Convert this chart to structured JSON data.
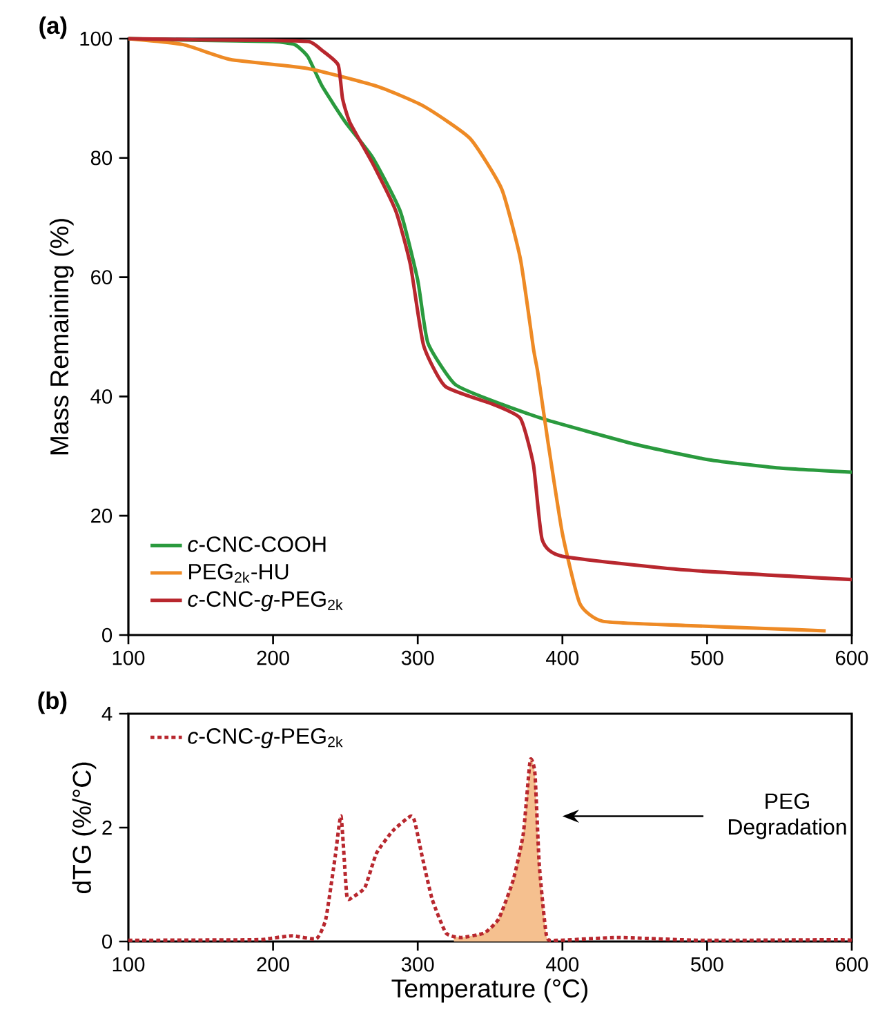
{
  "chart_data": [
    {
      "type": "line",
      "title": "(a)",
      "ylabel": "Mass Remaining (%)",
      "xlim": [
        100,
        600
      ],
      "ylim": [
        0,
        100
      ],
      "xticks": [
        100,
        200,
        300,
        400,
        500,
        600
      ],
      "yticks": [
        0,
        20,
        40,
        60,
        80,
        100
      ],
      "legend": "bottom left",
      "line_style": "solid",
      "series": [
        {
          "name": "*c*-CNC-COOH",
          "color": "#2a9a3e",
          "x": [
            100,
            150,
            200,
            215,
            224,
            234,
            250,
            269,
            288,
            300,
            307,
            326,
            358,
            390,
            450,
            501,
            550,
            600
          ],
          "values": [
            100,
            99.7,
            99.5,
            99,
            97,
            92,
            86,
            80,
            71,
            59.5,
            49,
            42,
            38.7,
            36,
            32,
            29.4,
            28,
            27.3
          ]
        },
        {
          "name": "PEG$_{2k}$-HU",
          "color": "#ee8a25",
          "x": [
            100,
            138,
            170.6,
            224,
            272,
            304,
            336,
            358,
            371,
            380,
            383,
            390,
            400,
            412,
            428,
            485,
            540,
            582
          ],
          "values": [
            100,
            99,
            96.5,
            95,
            92,
            88.7,
            83.3,
            74.8,
            63,
            48,
            44,
            32.4,
            17,
            5.3,
            2.3,
            1.6,
            1.1,
            0.7
          ]
        },
        {
          "name": "*c*-CNC-*g*-PEG$_{2k}$",
          "color": "#b8272e",
          "x": [
            100,
            150,
            200,
            225,
            234,
            245,
            248,
            253,
            269,
            285,
            295,
            304,
            319,
            352,
            371,
            380,
            386,
            400,
            485.5,
            600
          ],
          "values": [
            100,
            99.8,
            99.7,
            99.5,
            98,
            95.6,
            90,
            86,
            79,
            71,
            62,
            48.6,
            41.7,
            38.7,
            36.3,
            28.5,
            16,
            13.2,
            10.9,
            9.3
          ]
        }
      ]
    },
    {
      "type": "line",
      "title": "(b)",
      "xlabel": "Temperature (°C)",
      "ylabel": "dTG (%/°C)",
      "xlim": [
        100,
        600
      ],
      "ylim": [
        0,
        4
      ],
      "xticks": [
        100,
        200,
        300,
        400,
        500,
        600
      ],
      "yticks": [
        0,
        2,
        4
      ],
      "legend": "top left",
      "annotations": [
        "PEG Degradation"
      ],
      "series": [
        {
          "type": "area",
          "color": "#f5c08f",
          "x": [
            325,
            329.7,
            346,
            356,
            366,
            373,
            377.7,
            381,
            384,
            389,
            392
          ],
          "values": [
            0.1,
            0.07,
            0.15,
            0.4,
            1.08,
            1.9,
            3.18,
            2.95,
            1.35,
            0.1,
            0.03
          ]
        },
        {
          "name": "*c*-CNC-*g*-PEG$_{2k}$",
          "color": "#b8272e",
          "line_style": "dashed",
          "x": [
            100,
            187,
            197,
            213.5,
            230,
            236.5,
            243,
            247,
            251,
            255,
            263.5,
            271.5,
            283,
            295,
            298,
            303,
            310,
            319.5,
            329.7,
            346,
            356,
            366,
            373,
            377.7,
            381,
            384,
            389,
            396,
            439,
            496,
            588.5,
            600
          ],
          "values": [
            0.02,
            0.03,
            0.05,
            0.1,
            0.05,
            0.4,
            1.5,
            2.2,
            0.8,
            0.78,
            0.95,
            1.55,
            1.95,
            2.2,
            2.1,
            1.5,
            0.74,
            0.15,
            0.07,
            0.15,
            0.4,
            1.08,
            1.9,
            3.18,
            2.95,
            1.35,
            0.1,
            0.02,
            0.07,
            0.02,
            0.03,
            0.02
          ]
        }
      ]
    }
  ]
}
